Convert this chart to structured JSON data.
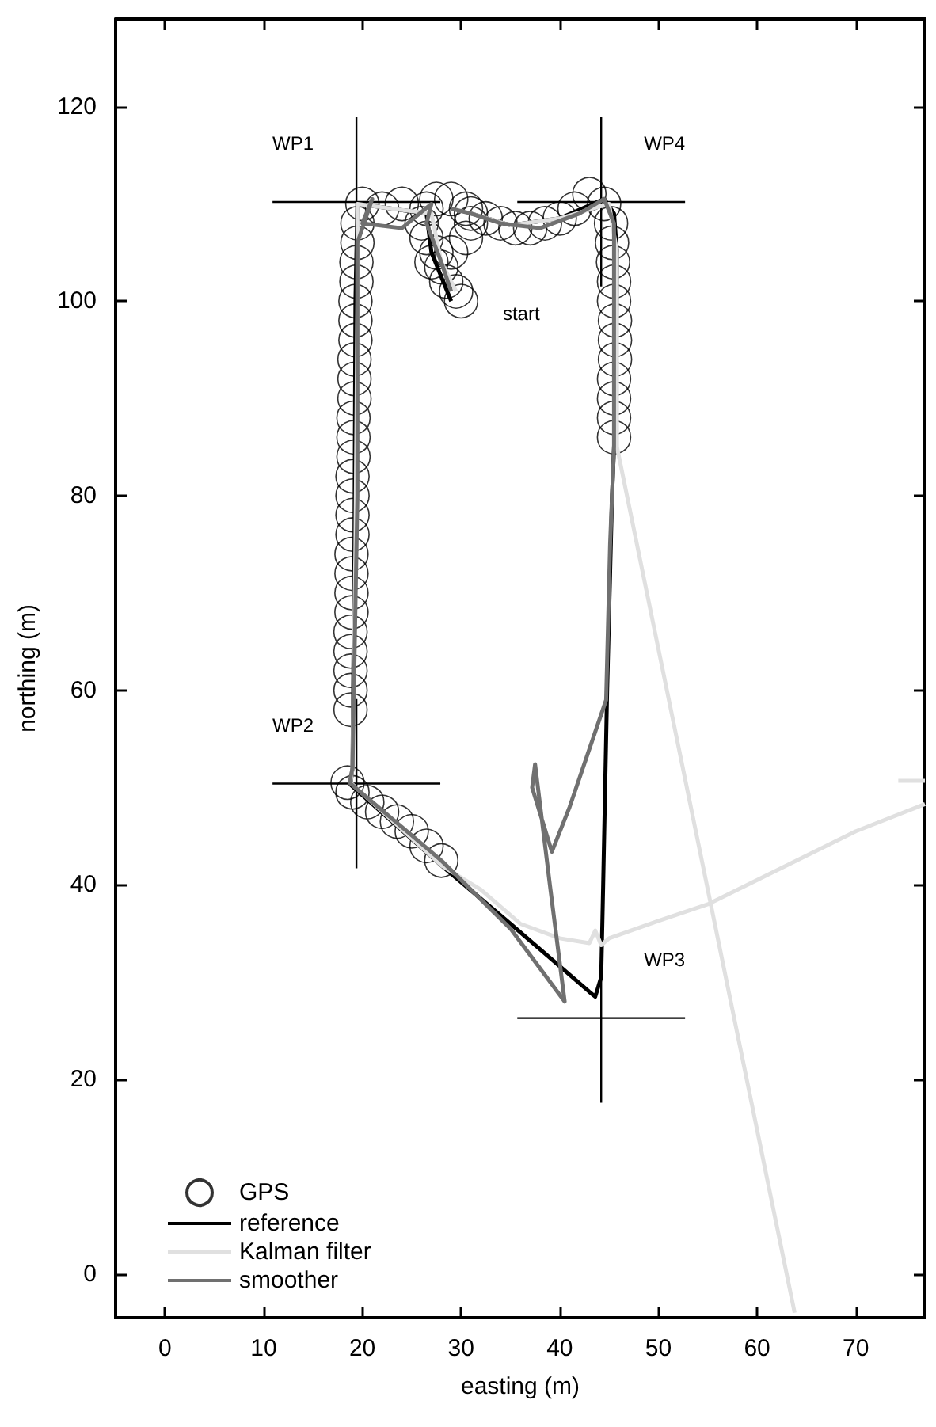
{
  "chart_data": {
    "type": "line",
    "xlabel": "easting (m)",
    "ylabel": "northing (m)",
    "xlim": [
      -5,
      77
    ],
    "ylim": [
      -4.5,
      129
    ],
    "xticks": [
      0,
      10,
      20,
      30,
      40,
      50,
      60,
      70
    ],
    "yticks": [
      0,
      20,
      40,
      60,
      80,
      100,
      120
    ],
    "grid": false,
    "legend": "bottom left",
    "series": [
      {
        "name": "GPS",
        "type": "scatter",
        "marker": "circle",
        "color": "#000000",
        "x": [
          30,
          29.5,
          28.5,
          28,
          27.5,
          26.5,
          26,
          26.5,
          27.5,
          29,
          30.5,
          31,
          30.5,
          29,
          27,
          24,
          22,
          20,
          19.5,
          19.5,
          19.4,
          19.4,
          19.3,
          19.3,
          19.3,
          19.2,
          19.2,
          19.2,
          19.1,
          19.1,
          19.1,
          19,
          19,
          19,
          19,
          18.9,
          18.9,
          18.9,
          18.9,
          18.8,
          18.8,
          18.8,
          18.8,
          18.8,
          18.5,
          19,
          20.5,
          22,
          23.5,
          25,
          26.5,
          28,
          45.5,
          45.5,
          45.5,
          45.5,
          45.6,
          45.6,
          45.6,
          45.5,
          45.5,
          45.4,
          45.3,
          45.2,
          44.5,
          43,
          41.5,
          40,
          38.5,
          37,
          35.5,
          34,
          32.5,
          31
        ],
        "values": [
          100,
          101,
          102,
          103.5,
          105,
          106.5,
          108,
          109.5,
          110.5,
          110.5,
          109.5,
          108,
          106.5,
          105,
          104,
          110,
          109.5,
          110,
          108,
          106,
          104,
          102,
          100,
          98,
          96,
          94,
          92,
          90,
          88,
          86,
          84,
          82,
          80,
          78,
          76,
          74,
          72,
          70,
          68,
          66,
          64,
          62,
          60,
          58,
          50.5,
          49.5,
          48.5,
          47.5,
          46.5,
          45.5,
          44,
          42.5,
          86,
          88,
          90,
          92,
          94,
          96,
          98,
          100,
          102,
          104,
          106,
          108,
          110,
          111,
          109.5,
          108.5,
          108,
          107.5,
          107.5,
          108,
          108.5,
          109
        ]
      },
      {
        "name": "reference",
        "marker": "none",
        "color": "#000000",
        "x": [
          29,
          27,
          26.5,
          23,
          19.5,
          19.3,
          19.2,
          19,
          18.8,
          28,
          35,
          43,
          43.6,
          44.2,
          44.4,
          44.8,
          45.3,
          45.7,
          45.8,
          45.5,
          44.5,
          40,
          35,
          31
        ],
        "values": [
          100,
          105,
          109,
          109.5,
          110,
          100,
          75,
          52,
          50.3,
          42,
          36,
          29,
          28.5,
          30.5,
          40,
          60,
          80,
          90,
          105,
          109,
          110.5,
          108.5,
          107.8,
          109
        ]
      },
      {
        "name": "Kalman filter",
        "marker": "none",
        "color": "#e0e0e0",
        "x": [
          29.5,
          28,
          27,
          23,
          19.5,
          19.5,
          19.3,
          19,
          18.8,
          28,
          32,
          36,
          40,
          43,
          43.6,
          44.2,
          45,
          50,
          55,
          60,
          65,
          70,
          77,
          null,
          74.3,
          77,
          null,
          63.8,
          45.8,
          45.8,
          45,
          40,
          35,
          31
        ],
        "values": [
          101,
          104,
          109,
          109.5,
          110,
          100,
          75,
          52,
          50.5,
          42,
          39.5,
          36,
          34.5,
          34,
          35.3,
          33.8,
          34.5,
          36.3,
          38,
          40.5,
          43,
          45.5,
          48.3,
          null,
          50.7,
          50.7,
          null,
          -4,
          85,
          105,
          110,
          108.5,
          107.8,
          109
        ]
      },
      {
        "name": "smoother",
        "marker": "none",
        "color": "#707070",
        "x": [
          29,
          28,
          26.5,
          27,
          24,
          20,
          21,
          19.5,
          19.5,
          19,
          18.7,
          28,
          35,
          40.5,
          39,
          37.5,
          37.2,
          39.2,
          41,
          44.7,
          45.1,
          45.5,
          45.5,
          45.5,
          44.5,
          42,
          38,
          34,
          31,
          29
        ],
        "values": [
          101,
          104,
          108,
          110,
          107.5,
          108,
          110.5,
          106,
          80,
          52,
          50.5,
          42.5,
          35.5,
          28,
          40,
          52.4,
          50,
          43.4,
          48,
          59,
          75,
          85,
          100,
          108,
          110.5,
          109,
          107.5,
          108,
          109,
          109.5
        ]
      },
      {
        "marker": "none",
        "color": "#000000",
        "x": [
          10.9,
          19.4,
          27.9,
          null,
          19.4,
          19.4,
          19.4,
          null,
          10.9,
          19.4,
          27.9,
          null,
          19.4,
          19.4,
          19.4,
          null,
          35.7,
          44.2,
          52.7,
          null,
          44.2,
          44.2,
          44.2,
          null,
          35.7,
          44.2,
          52.7,
          null,
          44.2,
          44.2,
          44.2
        ],
        "values": [
          110.2,
          110.2,
          110.2,
          null,
          118.9,
          110.2,
          101.5,
          null,
          50.4,
          50.4,
          50.4,
          null,
          59.1,
          50.4,
          41.7,
          null,
          26.3,
          26.3,
          26.3,
          null,
          35,
          26.3,
          17.6,
          null,
          110.2,
          110.2,
          110.2,
          null,
          118.9,
          110.2,
          101.5
        ]
      }
    ],
    "annotations": [
      "WP1",
      "WP2",
      "WP3",
      "WP4",
      {
        "text": "start",
        "x": 30,
        "y": 100
      }
    ]
  }
}
